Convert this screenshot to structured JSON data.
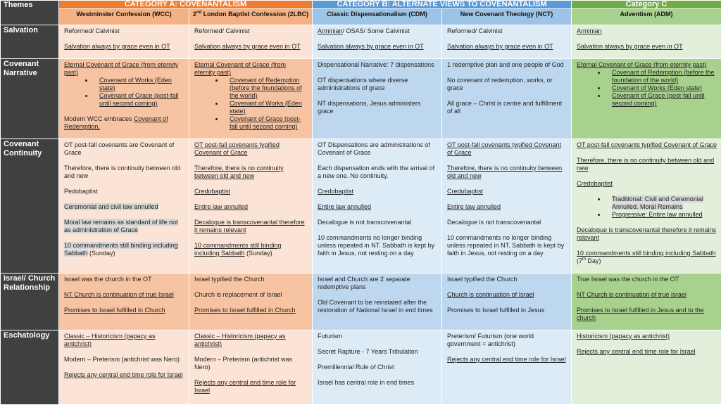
{
  "header": {
    "themes_label": "Themes",
    "categories": [
      {
        "label": "CATEGORY A: COVENANTALISM",
        "span": 2,
        "color": "#ED7D31"
      },
      {
        "label": "CATEGORY B: ALTERNATE VIEWS TO COVENANTALISM",
        "span": 2,
        "color": "#5B9BD5"
      },
      {
        "label": "Category C",
        "span": 1,
        "color": "#70AD47"
      }
    ],
    "columns": [
      [
        {
          "t": "Westminster Confession (WCC)"
        }
      ],
      [
        {
          "t": "2"
        },
        {
          "t": "nd",
          "sup": true
        },
        {
          "t": " London Baptist Confession (2LBC)"
        }
      ],
      [
        {
          "t": "Classic Dispensationalism (CDM)"
        }
      ],
      [
        {
          "t": "New Covenant Theology (NCT)"
        }
      ],
      [
        {
          "t": "Adventism (ADM)"
        }
      ]
    ]
  },
  "rows": [
    {
      "theme": "Salvation",
      "cells": [
        [
          {
            "p": [
              {
                "t": "Reformed/ Calvinist"
              }
            ]
          },
          {
            "p": [
              {
                "t": "Salvation always by grace even in OT",
                "u": true
              }
            ]
          }
        ],
        [
          {
            "p": [
              {
                "t": "Reformed/ Calvinist"
              }
            ]
          },
          {
            "p": [
              {
                "t": "Salvation always by grace even in OT",
                "u": true
              }
            ]
          }
        ],
        [
          {
            "p": [
              {
                "t": "Arminian",
                "u": true
              },
              {
                "t": "/ OSAS/ Some Calvinist"
              }
            ]
          },
          {
            "p": [
              {
                "t": "Salvation always by grace even in OT",
                "u": true
              }
            ]
          }
        ],
        [
          {
            "p": [
              {
                "t": "Reformed/ Calvinist"
              }
            ]
          },
          {
            "p": [
              {
                "t": "Salvation always by grace even in OT",
                "u": true
              }
            ]
          }
        ],
        [
          {
            "p": [
              {
                "t": "Arminian",
                "u": true
              }
            ]
          },
          {
            "p": [
              {
                "t": "Salvation always by grace even in OT",
                "u": true
              }
            ]
          }
        ]
      ]
    },
    {
      "theme": "Covenant Narrative",
      "cells": [
        [
          {
            "p": [
              {
                "t": "Eternal Covenant of Grace (from eternity past)",
                "u": true
              }
            ],
            "tight": true
          },
          {
            "li": [
              [
                {
                  "t": "Covenant of Works (Eden state)",
                  "u": true
                }
              ],
              [
                {
                  "t": "Covenant of Grace (post-fall until second coming)",
                  "u": true
                }
              ]
            ]
          },
          {
            "p": [
              {
                "t": "Modern WCC embraces "
              },
              {
                "t": "Covenant of Redemption.",
                "u": true
              }
            ]
          }
        ],
        [
          {
            "p": [
              {
                "t": "Eternal Covenant of Grace (from eternity past)",
                "u": true
              }
            ],
            "tight": true
          },
          {
            "li": [
              [
                {
                  "t": "Covenant of Redemption (before the foundations of the world)",
                  "u": true
                }
              ],
              [
                {
                  "t": "Covenant of Works (Eden state)",
                  "u": true
                }
              ],
              [
                {
                  "t": "Covenant of Grace (post-fall until second coming)",
                  "u": true
                }
              ]
            ]
          }
        ],
        [
          {
            "p": [
              {
                "t": "Dispensational Narrative: 7 dispensations"
              }
            ]
          },
          {
            "p": [
              {
                "t": "OT dispensations where diverse administrations of grace"
              }
            ]
          },
          {
            "p": [
              {
                "t": "NT dispensations, Jesus administers grace"
              }
            ]
          }
        ],
        [
          {
            "p": [
              {
                "t": "1 redemptive plan and one people of God"
              }
            ]
          },
          {
            "p": [
              {
                "t": "No covenant of redemption, works, or grace"
              }
            ]
          },
          {
            "p": [
              {
                "t": "All grace – Christ is centre and fulfillment of all"
              }
            ]
          }
        ],
        [
          {
            "p": [
              {
                "t": "Eternal Covenant of Grace (from eternity past)",
                "u": true
              }
            ],
            "tight": true
          },
          {
            "li": [
              [
                {
                  "t": "Covenant of Redemption (before the foundation of the world)",
                  "u": true
                }
              ],
              [
                {
                  "t": "Covenant of Works (Eden state)",
                  "u": true
                }
              ],
              [
                {
                  "t": "Covenant of Grace (post-fall until second coming)",
                  "u": true
                }
              ]
            ]
          }
        ]
      ]
    },
    {
      "theme": "Covenant Continuity",
      "cells": [
        [
          {
            "p": [
              {
                "t": "OT post-fall covenants are Covenant of Grace"
              }
            ]
          },
          {
            "p": [
              {
                "t": "Therefore, there is continuity between old and new"
              }
            ]
          },
          {
            "p": [
              {
                "t": "Pedobaptist"
              }
            ]
          },
          {
            "p": [
              {
                "t": "Ceremonial and civil law annulled",
                "hl": true
              }
            ]
          },
          {
            "p": [
              {
                "t": "Moral law remains as standard of life not as administration of Grace",
                "hl": true
              }
            ]
          },
          {
            "p": [
              {
                "t": "10 commandments still binding including Sabbath",
                "hl": true
              },
              {
                "t": " (Sunday)"
              }
            ]
          }
        ],
        [
          {
            "p": [
              {
                "t": "OT post-fall covenants typified Covenant of Grace",
                "u": true
              }
            ]
          },
          {
            "p": [
              {
                "t": "Therefore, there is no continuity between old and new",
                "u": true
              }
            ]
          },
          {
            "p": [
              {
                "t": "Credobaptist",
                "u": true
              }
            ]
          },
          {
            "p": [
              {
                "t": "Entire law annulled",
                "u": true
              }
            ]
          },
          {
            "p": [
              {
                "t": "Decalogue is transcovenantal therefore it remains relevant",
                "u": true
              }
            ]
          },
          {
            "p": [
              {
                "t": "10 commandments still binding including Sabbath",
                "u": true
              },
              {
                "t": " (Sunday)"
              }
            ]
          }
        ],
        [
          {
            "p": [
              {
                "t": "OT Dispensations are administrations of Covenant of Grace"
              }
            ]
          },
          {
            "p": [
              {
                "t": "Each dispensation ends with the arrival of a new one. No continuity."
              }
            ]
          },
          {
            "p": [
              {
                "t": "Credobaptist",
                "u": true
              }
            ]
          },
          {
            "p": [
              {
                "t": "Entire law annulled",
                "u": true
              }
            ]
          },
          {
            "p": [
              {
                "t": "Decalogue is not transcovenantal"
              }
            ]
          },
          {
            "p": [
              {
                "t": "10 commandments no longer binding unless repeated in NT. Sabbath is kept by faith in Jesus, not resting on a day"
              }
            ]
          }
        ],
        [
          {
            "p": [
              {
                "t": "OT post-fall covenants typified Covenant of Grace",
                "u": true
              }
            ]
          },
          {
            "p": [
              {
                "t": "Therefore, there is no continuity between old and new",
                "u": true
              }
            ]
          },
          {
            "p": [
              {
                "t": "Credobaptist",
                "u": true
              }
            ]
          },
          {
            "p": [
              {
                "t": "Entire law annulled",
                "u": true
              }
            ]
          },
          {
            "p": [
              {
                "t": "Decalogue is not transcovenantal"
              }
            ]
          },
          {
            "p": [
              {
                "t": "10 commandments no longer binding unless repeated in NT. Sabbath is kept by faith in Jesus, not resting on a day"
              }
            ]
          }
        ],
        [
          {
            "p": [
              {
                "t": "OT post-fall covenants typified Covenant of Grace",
                "u": true
              }
            ]
          },
          {
            "p": [
              {
                "t": "Therefore, there is no continuity between old and new",
                "u": true
              }
            ]
          },
          {
            "p": [
              {
                "t": "Credobaptist",
                "u": true
              }
            ]
          },
          {
            "li": [
              [
                {
                  "t": "Traditional: Civil and Ceremonial Annulled. Moral Remains",
                  "hl": true
                }
              ],
              [
                {
                  "t": "Progressive: Entire law annulled",
                  "u": true
                }
              ]
            ]
          },
          {
            "p": [
              {
                "t": "Decalogue is transcovenantal therefore it remains relevant",
                "u": true
              }
            ]
          },
          {
            "p": [
              {
                "t": "10 commandments still binding including Sabbath",
                "u": true
              },
              {
                "t": " (7"
              },
              {
                "t": "th",
                "sup": true
              },
              {
                "t": " Day)"
              }
            ]
          }
        ]
      ]
    },
    {
      "theme": "Israel/ Church Relationship",
      "cells": [
        [
          {
            "p": [
              {
                "t": "Israel was the church in the OT"
              }
            ]
          },
          {
            "p": [
              {
                "t": "NT Church is continuation of true Israel",
                "u": true
              }
            ]
          },
          {
            "p": [
              {
                "t": "Promises to Israel fulfilled in Church",
                "u": true
              }
            ]
          }
        ],
        [
          {
            "p": [
              {
                "t": "Israel typified the Church"
              }
            ]
          },
          {
            "p": [
              {
                "t": "Church is replacement of Israel"
              }
            ]
          },
          {
            "p": [
              {
                "t": "Promises to Israel fulfilled in Church",
                "u": true
              }
            ]
          }
        ],
        [
          {
            "p": [
              {
                "t": "Israel and Church are 2 separate redemptive plans"
              }
            ]
          },
          {
            "p": [
              {
                "t": "Old Covenant to be reinstated after the restoration of National Israel in end times"
              }
            ]
          }
        ],
        [
          {
            "p": [
              {
                "t": "Israel typified the Church"
              }
            ]
          },
          {
            "p": [
              {
                "t": "Church is continuation of Israel",
                "u": true
              }
            ]
          },
          {
            "p": [
              {
                "t": "Promises to Israel fulfilled in Jesus"
              }
            ]
          }
        ],
        [
          {
            "p": [
              {
                "t": "True Israel was the church in the OT"
              }
            ]
          },
          {
            "p": [
              {
                "t": "NT Church is continuation of true Israel",
                "u": true
              }
            ]
          },
          {
            "p": [
              {
                "t": "Promises to Israel fulfilled in Jesus and to the church",
                "u": true
              }
            ]
          }
        ]
      ]
    },
    {
      "theme": "Eschatology",
      "cells": [
        [
          {
            "p": [
              {
                "t": "Classic – Historicism (papacy as antichrist)",
                "u": true
              }
            ]
          },
          {
            "p": [
              {
                "t": "Modern – Preterism (antichrist was Nero)"
              }
            ]
          },
          {
            "p": [
              {
                "t": "Rejects any central end time role for Israel",
                "u": true
              }
            ]
          }
        ],
        [
          {
            "p": [
              {
                "t": "Classic – Historicism (papacy as antichrist)",
                "u": true
              }
            ]
          },
          {
            "p": [
              {
                "t": "Modern – Preterism (antichrist was Nero)"
              }
            ]
          },
          {
            "p": [
              {
                "t": "Rejects any central end time role for Israel",
                "u": true
              }
            ]
          }
        ],
        [
          {
            "p": [
              {
                "t": "Futurism"
              }
            ]
          },
          {
            "p": [
              {
                "t": "Secret Rapture - 7 Years Tribulation"
              }
            ]
          },
          {
            "p": [
              {
                "t": "Premillennial Rule of Christ"
              }
            ]
          },
          {
            "p": [
              {
                "t": "Israel has central role in end times"
              }
            ]
          }
        ],
        [
          {
            "p": [
              {
                "t": "Preterism/ Futurism (one world government = antichrist)"
              }
            ]
          },
          {
            "p": [
              {
                "t": "Rejects any central end time role for Israel",
                "u": true
              }
            ]
          }
        ],
        [
          {
            "p": [
              {
                "t": "Historicism (papacy as antichrist)",
                "u": true
              }
            ]
          },
          {
            "p": [
              {
                "t": "Rejects any central end time role for Israel",
                "u": true
              }
            ]
          }
        ]
      ]
    }
  ]
}
